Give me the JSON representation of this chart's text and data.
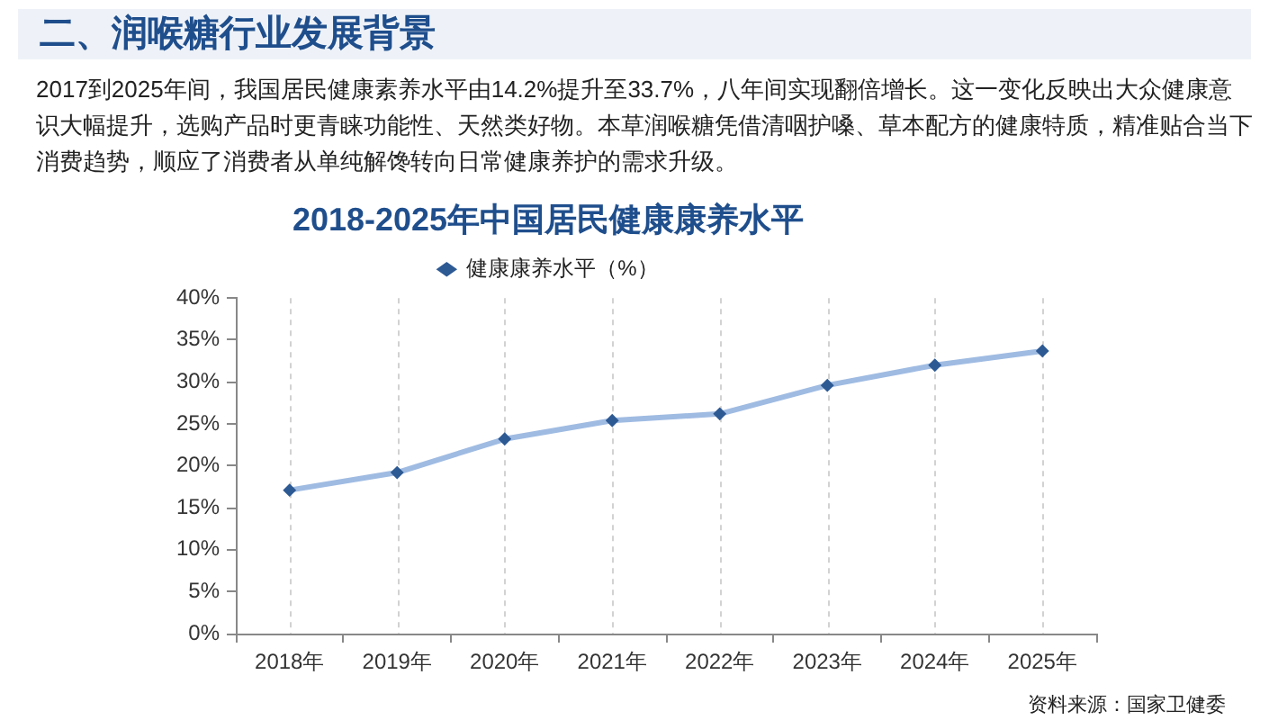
{
  "chart_data": {
    "type": "line",
    "title": "2018-2025年中国居民健康康养水平",
    "annotations": [
      "二、润喉糖行业发展背景",
      "2017到2025年间，我国居民健康素养水平由14.2%提升至33.7%，八年间实现翻倍增长。这一变化反映出大众健康意识大幅提升，选购产品时更青睐功能性、天然类好物。本草润喉糖凭借清咽护嗓、草本配方的健康特质，精准贴合当下消费趋势，顺应了消费者从单纯解馋转向日常健康养护的需求升级。",
      "资料来源：国家卫健委"
    ],
    "categories": [
      "2018年",
      "2019年",
      "2020年",
      "2021年",
      "2022年",
      "2023年",
      "2024年",
      "2025年"
    ],
    "series": [
      {
        "name": "健康康养水平（%）",
        "color": "#9fbbe2",
        "values": [
          17.1,
          19.2,
          23.2,
          25.4,
          26.2,
          29.6,
          32.0,
          33.7
        ]
      }
    ],
    "ylim": [
      0,
      40
    ],
    "yticks": [
      {
        "value": 0,
        "label": "0%"
      },
      {
        "value": 5,
        "label": "5%"
      },
      {
        "value": 10,
        "label": "10%"
      },
      {
        "value": 15,
        "label": "15%"
      },
      {
        "value": 20,
        "label": "20%"
      },
      {
        "value": 25,
        "label": "25%"
      },
      {
        "value": 30,
        "label": "30%"
      },
      {
        "value": 35,
        "label": "35%"
      },
      {
        "value": 40,
        "label": "40%"
      }
    ],
    "grid": "x",
    "legend": "top",
    "marker": "diamond",
    "line_style": "solid"
  }
}
